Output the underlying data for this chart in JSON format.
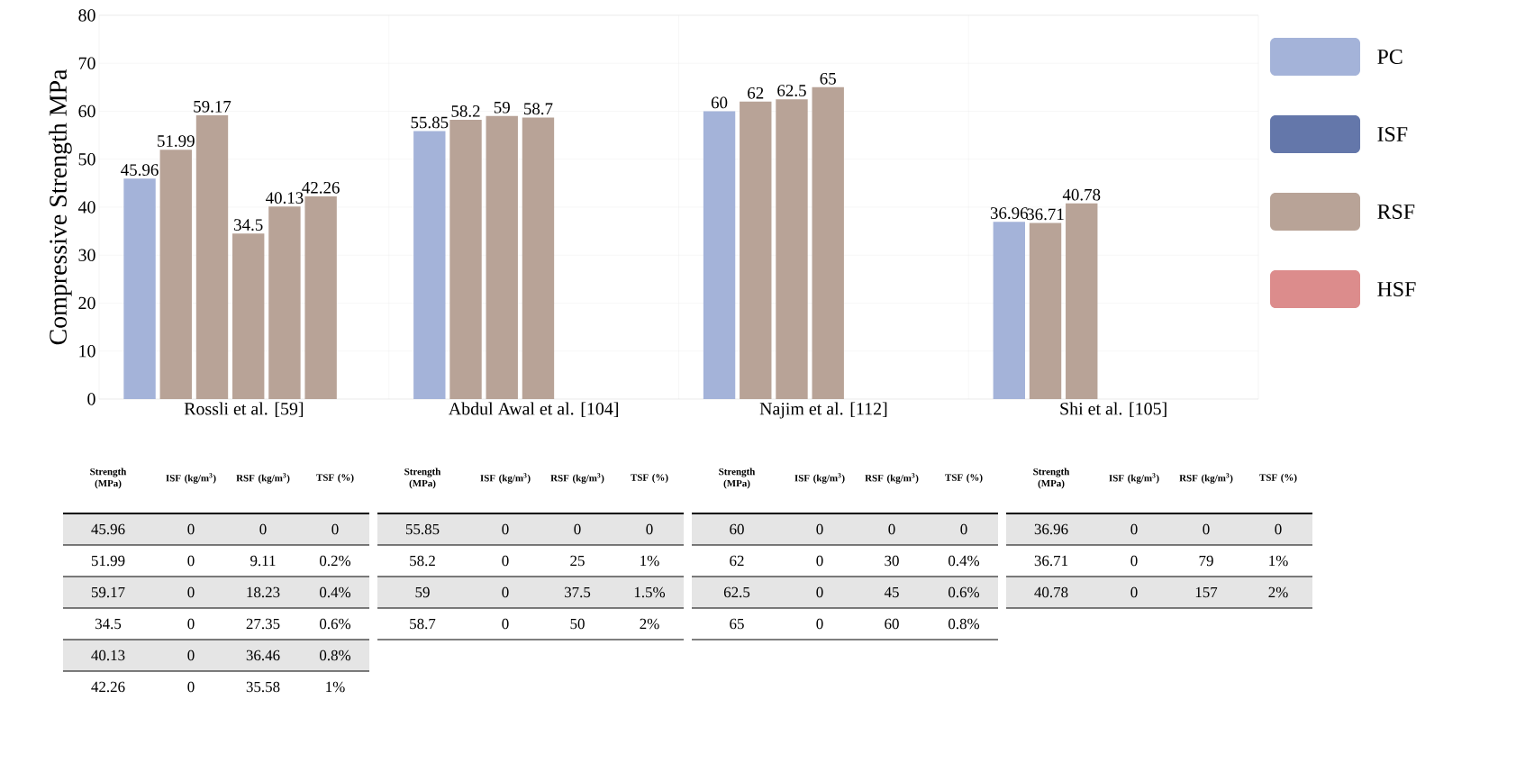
{
  "chart_data": {
    "type": "bar",
    "ylabel": "Compressive Strength MPa",
    "categories": [
      "Rossli et al. [59]",
      "Abdul Awal et al. [104]",
      "Najim et al. [112]",
      "Shi et al. [105]"
    ],
    "series": [
      {
        "name": "PC",
        "color": "#a4b3d9",
        "values": [
          45.96,
          55.85,
          60,
          36.96
        ]
      },
      {
        "name": "ISF",
        "color": "#6477aa",
        "values": [
          null,
          null,
          null,
          null
        ]
      },
      {
        "name": "RSF",
        "color": "#b8a397",
        "values": [
          51.99,
          58.2,
          62,
          36.71
        ]
      },
      {
        "name": "HSF",
        "color": "#dc8c8c",
        "values": [
          null,
          null,
          null,
          null
        ]
      },
      {
        "color": "#b8a397",
        "values": [
          59.17,
          59,
          62.5,
          40.78
        ]
      },
      {
        "color": "#b8a397",
        "values": [
          34.5,
          58.7,
          65,
          null
        ]
      },
      {
        "color": "#b8a397",
        "values": [
          40.13,
          null,
          null,
          null
        ]
      },
      {
        "color": "#b8a397",
        "values": [
          42.26,
          null,
          null,
          null
        ]
      }
    ],
    "ylim": [
      0,
      80
    ],
    "yticks": [
      0,
      10,
      20,
      30,
      40,
      50,
      60,
      70,
      80
    ],
    "grid": true,
    "legend": "right",
    "data_labels": true,
    "annotations": [
      "Strength (MPa)",
      "ISF (kg/m$^{3}$)",
      "RSF (kg/m$^{3}$)",
      "TSF (%)",
      "45.96",
      "0",
      "0",
      "0",
      "51.99",
      "0",
      "9.11",
      "0.2%",
      "59.17",
      "0",
      "18.23",
      "0.4%",
      "34.5",
      "0",
      "27.35",
      "0.6%",
      "40.13",
      "0",
      "36.46",
      "0.8%",
      "42.26",
      "0",
      "35.58",
      "1%",
      "Strength (MPa)",
      "ISF (kg/m$^{3}$)",
      "RSF (kg/m$^{3}$)",
      "TSF (%)",
      "55.85",
      "0",
      "0",
      "0",
      "58.2",
      "0",
      "25",
      "1%",
      "59",
      "0",
      "37.5",
      "1.5%",
      "58.7",
      "0",
      "50",
      "2%",
      "Strength (MPa)",
      "ISF (kg/m$^{3}$)",
      "RSF (kg/m$^{3}$)",
      "TSF (%)",
      "60",
      "0",
      "0",
      "0",
      "62",
      "0",
      "30",
      "0.4%",
      "62.5",
      "0",
      "45",
      "0.6%",
      "65",
      "0",
      "60",
      "0.8%",
      "Strength (MPa)",
      "ISF (kg/m$^{3}$)",
      "RSF (kg/m$^{3}$)",
      "TSF (%)",
      "36.96",
      "0",
      "0",
      "0",
      "36.71",
      "0",
      "79",
      "1%",
      "40.78",
      "0",
      "157",
      "2%"
    ]
  }
}
